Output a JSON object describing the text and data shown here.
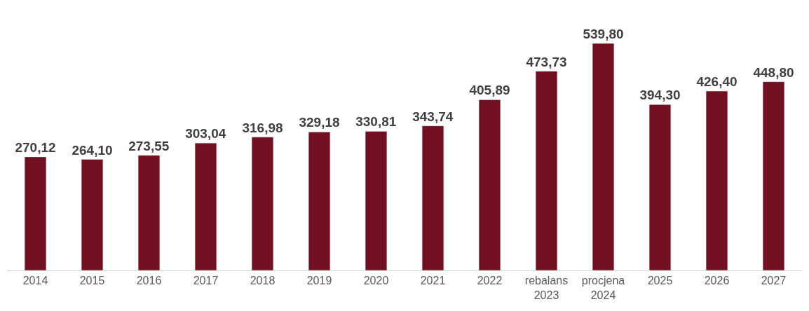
{
  "chart_data": {
    "type": "bar",
    "categories": [
      "2014",
      "2015",
      "2016",
      "2017",
      "2018",
      "2019",
      "2020",
      "2021",
      "2022",
      "rebalans\n2023",
      "procjena\n2024",
      "2025",
      "2026",
      "2027"
    ],
    "values": [
      270.12,
      264.1,
      273.55,
      303.04,
      316.98,
      329.18,
      330.81,
      343.74,
      405.89,
      473.73,
      539.8,
      394.3,
      426.4,
      448.8
    ],
    "value_labels": [
      "270,12",
      "264,10",
      "273,55",
      "303,04",
      "316,98",
      "329,18",
      "330,81",
      "343,74",
      "405,89",
      "473,73",
      "539,80",
      "394,30",
      "426,40",
      "448,80"
    ],
    "color": "#720f20"
  }
}
